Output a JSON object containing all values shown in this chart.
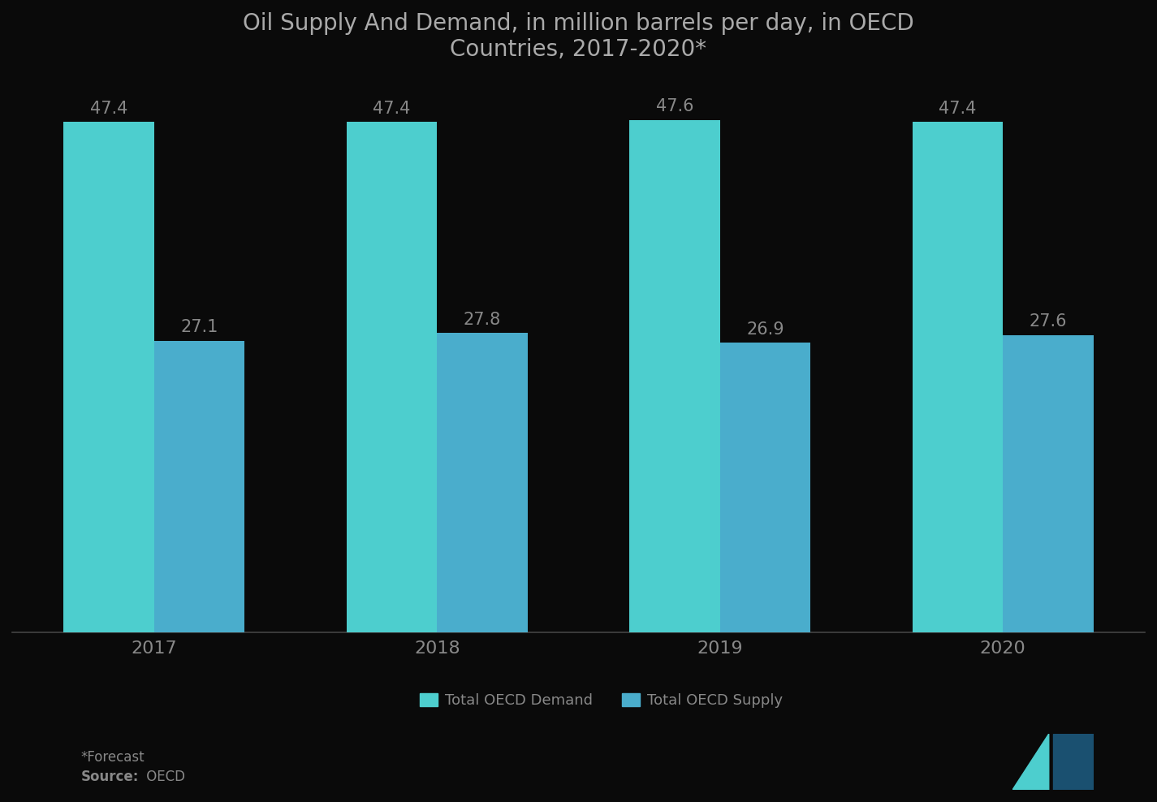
{
  "title": "Oil Supply And Demand, in million barrels per day, in OECD\nCountries, 2017-2020*",
  "years": [
    "2017",
    "2018",
    "2019",
    "2020"
  ],
  "demand_values": [
    47.4,
    47.4,
    47.6,
    47.4
  ],
  "supply_values": [
    27.1,
    27.8,
    26.9,
    27.6
  ],
  "demand_color": "#4DCECE",
  "supply_color": "#4AADCC",
  "background_color": "#0a0a0a",
  "title_fontsize": 20,
  "label_fontsize": 15,
  "tick_fontsize": 16,
  "bar_width": 0.32,
  "ylim": [
    0,
    55
  ],
  "footnote1": "*Forecast",
  "footnote2_bold": "Source:",
  "footnote2_normal": " OECD",
  "legend_demand": "Total OECD Demand",
  "legend_supply": "Total OECD Supply",
  "title_color": "#aaaaaa",
  "tick_color": "#888888",
  "annotation_color": "#888888",
  "spine_color": "#444444",
  "logo_teal": "#4DCECE",
  "logo_dark": "#1a5070"
}
